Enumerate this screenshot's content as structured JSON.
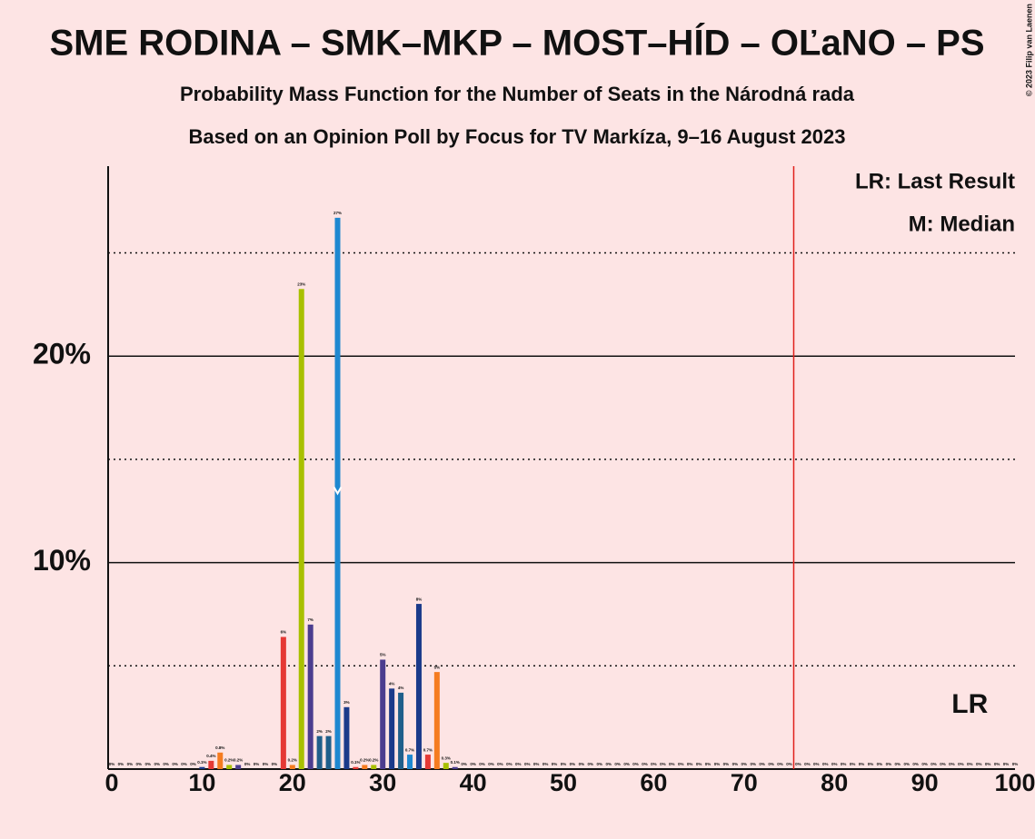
{
  "chart_data": {
    "type": "bar",
    "title": "SME RODINA – SMK–MKP – MOST–HÍD – OĽaNO – PS",
    "subtitle": "Probability Mass Function for the Number of Seats in the Národná rada",
    "subtitle2": "Based on an Opinion Poll by Focus for TV Markíza, 9–16 August 2023",
    "copyright": "© 2023 Filip van Laenen",
    "legend_lr": "LR: Last Result",
    "legend_median": "M: Median",
    "lr_label": "LR",
    "last_result": 95,
    "median": 25,
    "majority": 76,
    "x": [
      0,
      1,
      2,
      3,
      4,
      5,
      6,
      7,
      8,
      9,
      10,
      11,
      12,
      13,
      14,
      15,
      16,
      17,
      18,
      19,
      20,
      21,
      22,
      23,
      24,
      25,
      26,
      27,
      28,
      29,
      30,
      31,
      32,
      33,
      34,
      35,
      36,
      37,
      38,
      39,
      40,
      41,
      42,
      43,
      44,
      45,
      46,
      47,
      48,
      49,
      50,
      51,
      52,
      53,
      54,
      55,
      56,
      57,
      58,
      59,
      60,
      61,
      62,
      63,
      64,
      65,
      66,
      67,
      68,
      69,
      70,
      71,
      72,
      73,
      74,
      75,
      76,
      77,
      78,
      79,
      80,
      81,
      82,
      83,
      84,
      85,
      86,
      87,
      88,
      89,
      90,
      91,
      92,
      93,
      94,
      95,
      96,
      97,
      98,
      99,
      100
    ],
    "values": [
      0,
      0,
      0,
      0,
      0,
      0,
      0,
      0,
      0,
      0,
      0.1,
      0.4,
      0.8,
      0.2,
      0.2,
      0,
      0,
      0,
      0,
      6.4,
      0.2,
      23.25,
      7.0,
      1.6,
      1.6,
      26.7,
      3.0,
      0.1,
      0.2,
      0.2,
      5.3,
      3.9,
      3.7,
      0.7,
      8.0,
      0.7,
      4.7,
      0.3,
      0.1,
      0,
      0,
      0,
      0,
      0,
      0,
      0,
      0,
      0,
      0,
      0,
      0,
      0,
      0,
      0,
      0,
      0,
      0,
      0,
      0,
      0,
      0,
      0,
      0,
      0,
      0,
      0,
      0,
      0,
      0,
      0,
      0,
      0,
      0,
      0,
      0,
      0,
      0,
      0,
      0,
      0,
      0,
      0,
      0,
      0,
      0,
      0,
      0,
      0,
      0,
      0,
      0,
      0,
      0,
      0,
      0,
      0,
      0,
      0,
      0,
      0,
      0
    ],
    "value_labels": [
      "0%",
      "0%",
      "0%",
      "0%",
      "0%",
      "0%",
      "0%",
      "0%",
      "0%",
      "0%",
      "0.1%",
      "0.4%",
      "0.8%",
      "0.2%",
      "0.2%",
      "0%",
      "0%",
      "0%",
      "0%",
      "6%",
      "0.2%",
      "23%",
      "7%",
      "2%",
      "2%",
      "27%",
      "3%",
      "0.1%",
      "0.2%",
      "0.2%",
      "5%",
      "4%",
      "4%",
      "0.7%",
      "8%",
      "0.7%",
      "5%",
      "0.3%",
      "0.1%",
      "0%",
      "0%",
      "0%",
      "0%",
      "0%",
      "0%",
      "0%",
      "0%",
      "0%",
      "0%",
      "0%",
      "0%",
      "0%",
      "0%",
      "0%",
      "0%",
      "0%",
      "0%",
      "0%",
      "0%",
      "0%",
      "0%",
      "0%",
      "0%",
      "0%",
      "0%",
      "0%",
      "0%",
      "0%",
      "0%",
      "0%",
      "0%",
      "0%",
      "0%",
      "0%",
      "0%",
      "0%",
      "0%",
      "0%",
      "0%",
      "0%",
      "0%",
      "0%",
      "0%",
      "0%",
      "0%",
      "0%",
      "0%",
      "0%",
      "0%",
      "0%",
      "0%",
      "0%",
      "0%",
      "0%",
      "0%",
      "0%",
      "0%",
      "0%",
      "0%",
      "0%",
      "0%"
    ],
    "colors": [
      "#1a3a8a",
      "#1a3a8a",
      "#1a3a8a",
      "#1a3a8a",
      "#1a3a8a",
      "#1a3a8a",
      "#1a3a8a",
      "#1a3a8a",
      "#1a3a8a",
      "#1a3a8a",
      "#1a3a8a",
      "#e53935",
      "#f57c20",
      "#a8c000",
      "#4b3d8f",
      "#1a3a8a",
      "#1a3a8a",
      "#1a3a8a",
      "#1a3a8a",
      "#e53935",
      "#f57c20",
      "#a8c000",
      "#4b3d8f",
      "#1f5f8b",
      "#1f5f8b",
      "#1e88d0",
      "#1a3a8a",
      "#e53935",
      "#f57c20",
      "#a8c000",
      "#4b3d8f",
      "#1a3a8a",
      "#1f5f8b",
      "#1e88d0",
      "#1a3a8a",
      "#e53935",
      "#f57c20",
      "#a8c000",
      "#4b3d8f",
      "#1a3a8a",
      "#1a3a8a",
      "#1a3a8a",
      "#1a3a8a",
      "#1a3a8a",
      "#1a3a8a",
      "#1a3a8a",
      "#1a3a8a",
      "#1a3a8a",
      "#1a3a8a",
      "#1a3a8a",
      "#1a3a8a",
      "#1a3a8a",
      "#1a3a8a",
      "#1a3a8a",
      "#1a3a8a",
      "#1a3a8a",
      "#1a3a8a",
      "#1a3a8a",
      "#1a3a8a",
      "#1a3a8a",
      "#1a3a8a",
      "#1a3a8a",
      "#1a3a8a",
      "#1a3a8a",
      "#1a3a8a",
      "#1a3a8a",
      "#1a3a8a",
      "#1a3a8a",
      "#1a3a8a",
      "#1a3a8a",
      "#1a3a8a",
      "#1a3a8a",
      "#1a3a8a",
      "#1a3a8a",
      "#1a3a8a",
      "#1a3a8a",
      "#1a3a8a",
      "#1a3a8a",
      "#1a3a8a",
      "#1a3a8a",
      "#1a3a8a",
      "#1a3a8a",
      "#1a3a8a",
      "#1a3a8a",
      "#1a3a8a",
      "#1a3a8a",
      "#1a3a8a",
      "#1a3a8a",
      "#1a3a8a",
      "#1a3a8a",
      "#1a3a8a",
      "#1a3a8a",
      "#1a3a8a",
      "#1a3a8a",
      "#1a3a8a",
      "#1a3a8a",
      "#1a3a8a",
      "#1a3a8a",
      "#1a3a8a",
      "#1a3a8a",
      "#1a3a8a"
    ],
    "xlim": [
      0,
      100
    ],
    "xticks": [
      0,
      10,
      20,
      30,
      40,
      50,
      60,
      70,
      80,
      90,
      100
    ],
    "ylim": [
      0,
      29.2
    ],
    "yticks": [
      {
        "value": 10,
        "label": "10%"
      },
      {
        "value": 20,
        "label": "20%"
      }
    ],
    "minor_yticks": [
      5,
      15,
      25
    ],
    "majority_color": "#e0201b",
    "grid": true
  }
}
